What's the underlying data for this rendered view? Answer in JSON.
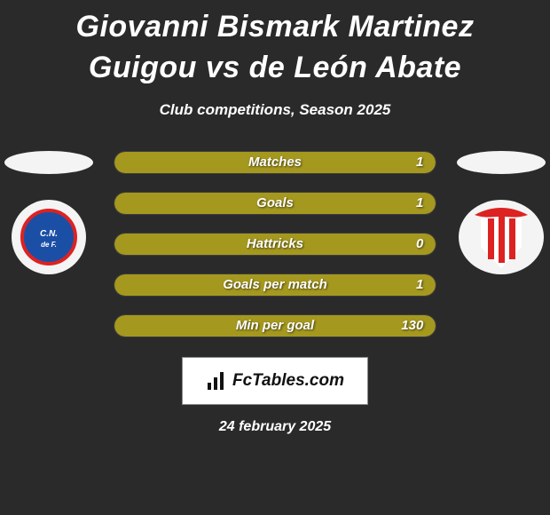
{
  "title": "Giovanni Bismark Martinez Guigou vs de León Abate",
  "subtitle": "Club competitions, Season 2025",
  "date": "24 february 2025",
  "brand": "FcTables.com",
  "colors": {
    "bar_fill": "#a5981f",
    "bar_fill_short": "#a5981f",
    "left_ellipse": "#f4f4f4",
    "right_ellipse": "#f4f4f4"
  },
  "stats": [
    {
      "label": "Matches",
      "value": "1",
      "fill_pct": 100
    },
    {
      "label": "Goals",
      "value": "1",
      "fill_pct": 100
    },
    {
      "label": "Hattricks",
      "value": "0",
      "fill_pct": 100
    },
    {
      "label": "Goals per match",
      "value": "1",
      "fill_pct": 100
    },
    {
      "label": "Min per goal",
      "value": "130",
      "fill_pct": 100
    }
  ]
}
